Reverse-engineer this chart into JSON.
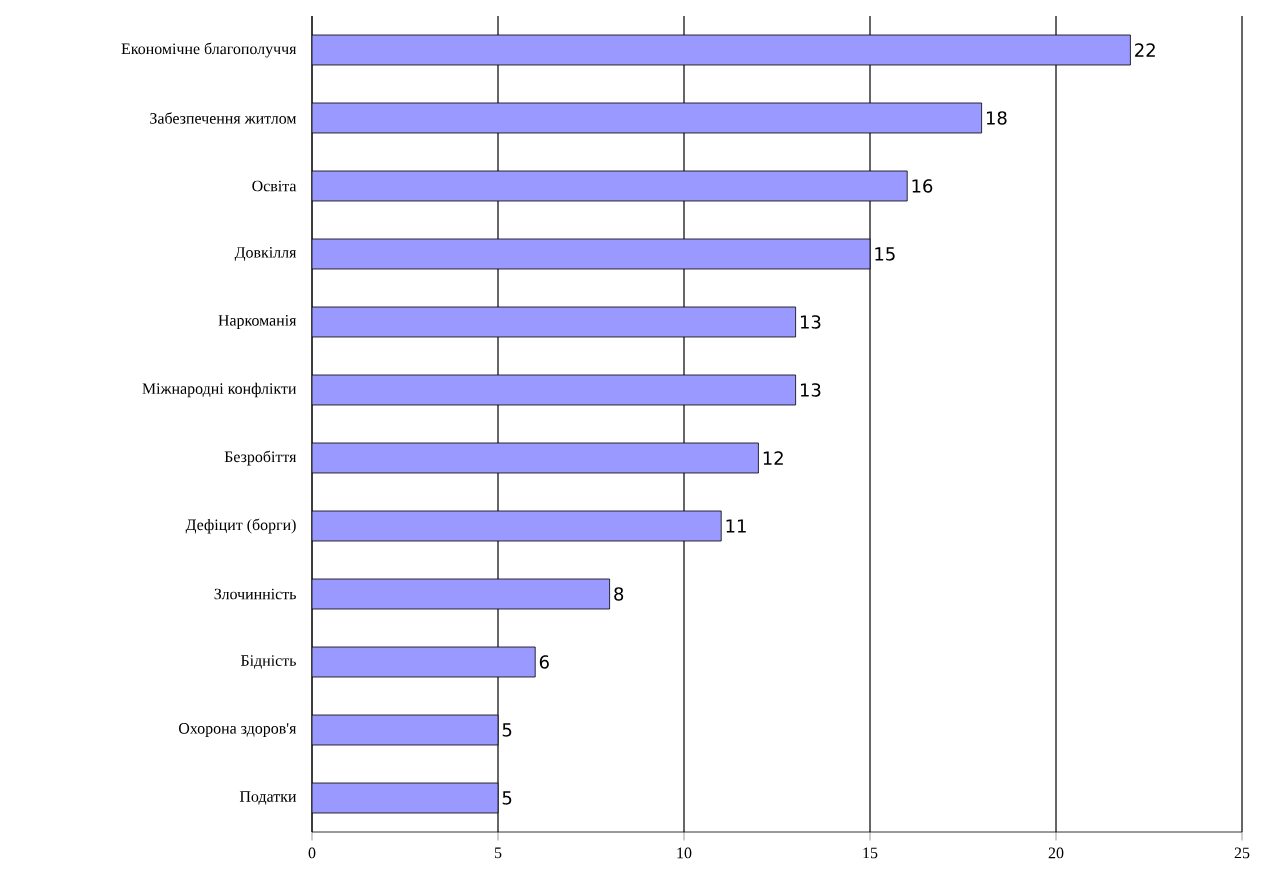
{
  "chart_data": {
    "type": "bar",
    "orientation": "horizontal",
    "categories": [
      "Економічне благополуччя",
      "Забезпечення житлом",
      "Освіта",
      "Довкілля",
      "Наркоманія",
      "Міжнародні конфлікти",
      "Безробіття",
      "Дефіцит (борги)",
      "Злочинність",
      "Бідність",
      "Охорона здоров'я",
      "Податки"
    ],
    "values": [
      22,
      18,
      16,
      15,
      13,
      13,
      12,
      11,
      8,
      6,
      5,
      5
    ],
    "color": "#9999ff",
    "xlim": [
      0,
      25
    ],
    "xticks": [
      0,
      5,
      10,
      15,
      20,
      25
    ],
    "grid": "x",
    "data_labels": true
  }
}
